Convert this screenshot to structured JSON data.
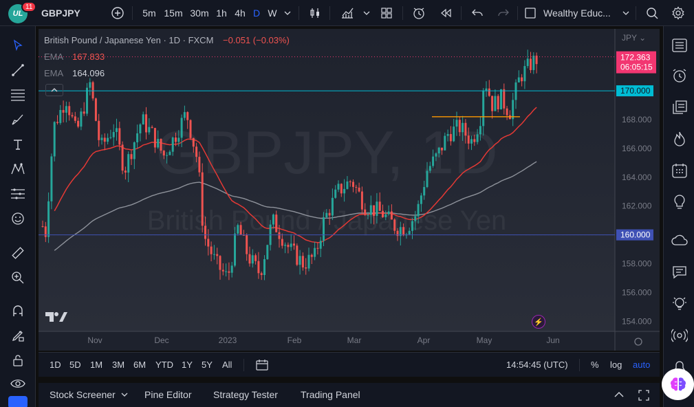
{
  "topbar": {
    "symbol": "GBPJPY",
    "notification_count": "11",
    "intervals": [
      "5m",
      "15m",
      "30m",
      "1h",
      "4h",
      "D",
      "W"
    ],
    "active_interval": "D",
    "layout_name": "Wealthy Educ..."
  },
  "chart": {
    "title": "British Pound / Japanese Yen · 1D · FXCM",
    "change": "−0.051 (−0.03%)",
    "ema1_label": "EMA",
    "ema1_value": "167.833",
    "ema2_label": "EMA",
    "ema2_value": "164.096",
    "watermark_symbol": "GBPJPY, 1D",
    "watermark_name": "British Pound / Japanese Yen",
    "currency": "JPY",
    "price_tag": "172.363",
    "countdown": "06:05:15",
    "level_tag_1": "170.000",
    "level_tag_2": "160.000",
    "colors": {
      "up": "#26a69a",
      "down": "#ef5350",
      "ema_fast": "#e53935",
      "ema_slow": "#b2b5be",
      "line_170": "#00bcd4",
      "line_160": "#3f51b5",
      "support_line": "#ff9800"
    }
  },
  "chart_data": {
    "type": "candlestick",
    "y_ticks": [
      "172.000",
      "170.000",
      "168.000",
      "166.000",
      "164.000",
      "162.000",
      "160.000",
      "158.000",
      "156.000",
      "154.000"
    ],
    "x_ticks": [
      "Nov",
      "Dec",
      "2023",
      "Feb",
      "Mar",
      "Apr",
      "May",
      "Jun"
    ],
    "ylim": [
      153.3,
      174.3
    ],
    "horizontal_lines": [
      170.0,
      160.0
    ],
    "support_level": 168.2,
    "last_price": 172.363
  },
  "rangebar": {
    "ranges": [
      "1D",
      "5D",
      "1M",
      "3M",
      "6M",
      "YTD",
      "1Y",
      "5Y",
      "All"
    ],
    "clock": "14:54:45 (UTC)",
    "percent": "%",
    "log": "log",
    "auto": "auto"
  },
  "bottom_panel": {
    "tabs": [
      "Stock Screener",
      "Pine Editor",
      "Strategy Tester",
      "Trading Panel"
    ]
  }
}
